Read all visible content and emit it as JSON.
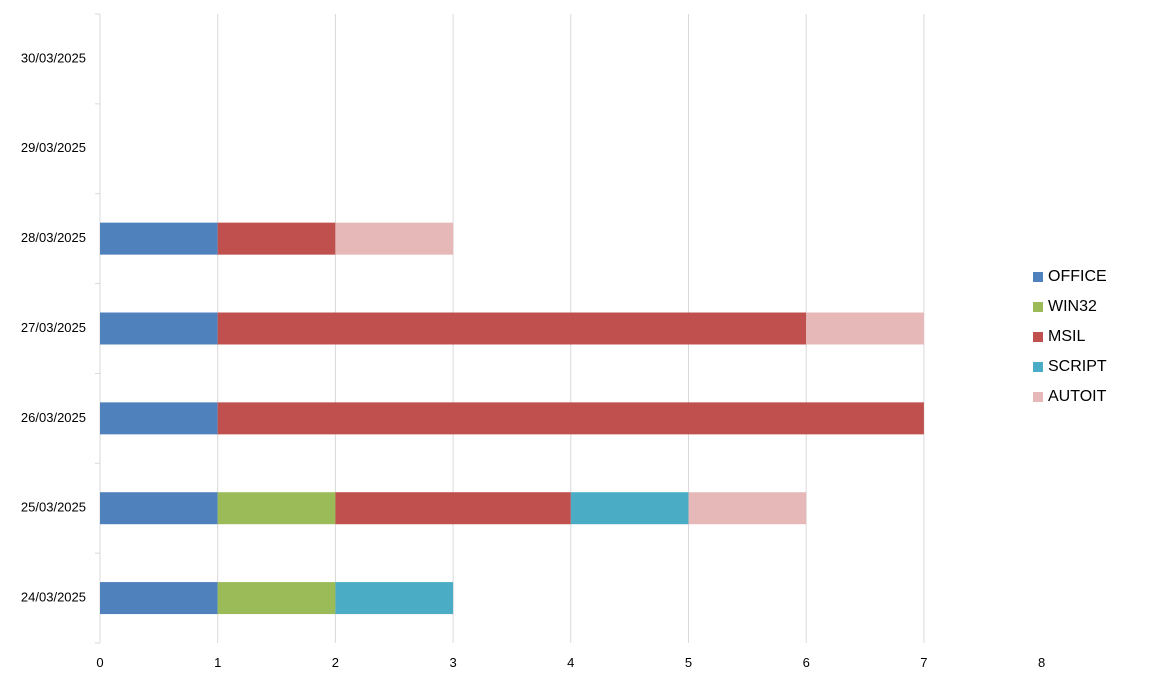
{
  "chart_data": {
    "type": "bar",
    "orientation": "horizontal",
    "stacked": true,
    "title": "",
    "xlabel": "",
    "ylabel": "",
    "categories": [
      "24/03/2025",
      "25/03/2025",
      "26/03/2025",
      "27/03/2025",
      "28/03/2025",
      "29/03/2025",
      "30/03/2025"
    ],
    "xlim": [
      0,
      8
    ],
    "xticks": [
      "0",
      "1",
      "2",
      "3",
      "4",
      "5",
      "6",
      "7",
      "8"
    ],
    "grid": true,
    "legend_position": "right",
    "series": [
      {
        "name": "OFFICE",
        "color": "#4F81BD",
        "values": [
          1,
          1,
          1,
          1,
          1,
          0,
          0
        ]
      },
      {
        "name": "WIN32",
        "color": "#9BBB59",
        "values": [
          1,
          1,
          0,
          0,
          0,
          0,
          0
        ]
      },
      {
        "name": "MSIL",
        "color": "#C0504D",
        "values": [
          0,
          2,
          6,
          5,
          1,
          0,
          0
        ]
      },
      {
        "name": "SCRIPT",
        "color": "#4BACC6",
        "values": [
          1,
          1,
          0,
          0,
          0,
          0,
          0
        ]
      },
      {
        "name": "AUTOIT",
        "color": "#E6B9B8",
        "values": [
          0,
          1,
          0,
          1,
          1,
          0,
          0
        ]
      }
    ]
  }
}
